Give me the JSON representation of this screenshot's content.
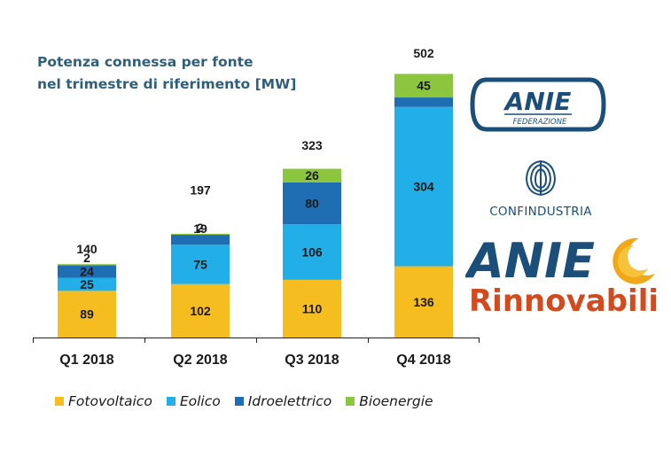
{
  "title_lines": [
    "Potenza connessa per fonte",
    "nel trimestre di riferimento [MW]"
  ],
  "colors": {
    "fotovoltaico": "#f5bd1f",
    "eolico": "#22aee6",
    "idroelettrico": "#1f6db3",
    "bioenergie": "#8cc63f",
    "title": "#2f5f7a",
    "anie_blue": "#1b4f7a",
    "rinnovabili_red": "#d24a1e",
    "sun": "#f0a818"
  },
  "chart_data": {
    "type": "bar",
    "stacked": true,
    "categories": [
      "Q1 2018",
      "Q2 2018",
      "Q3 2018",
      "Q4 2018"
    ],
    "series": [
      {
        "name": "Fotovoltaico",
        "values": [
          89,
          102,
          110,
          136
        ]
      },
      {
        "name": "Eolico",
        "values": [
          25,
          75,
          106,
          304
        ]
      },
      {
        "name": "Idroelettrico",
        "values": [
          24,
          19,
          80,
          18
        ]
      },
      {
        "name": "Bioenergie",
        "values": [
          2,
          2,
          26,
          45
        ]
      }
    ],
    "totals": [
      140,
      197,
      323,
      502
    ],
    "ylim": [
      0,
      520
    ],
    "grid": false,
    "legend": "bottom",
    "xlabel": "",
    "ylabel": ""
  },
  "logos": {
    "anie_federazione": {
      "name": "ANIE",
      "sub": "FEDERAZIONE"
    },
    "confindustria": "CONFINDUSTRIA",
    "anie_rinnovabili": {
      "name": "ANIE",
      "sub": "Rinnovabili"
    }
  }
}
